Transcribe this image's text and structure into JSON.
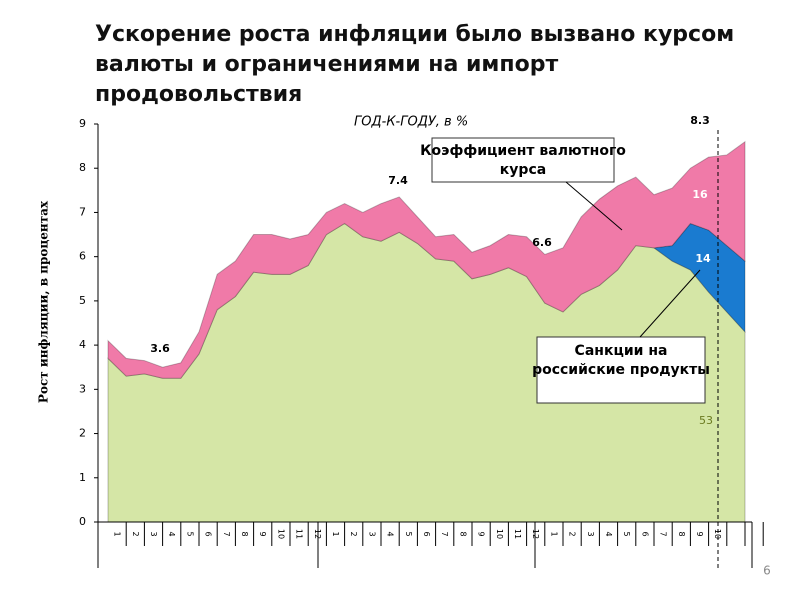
{
  "chart_data": {
    "type": "stacked_area",
    "title": "Ускорение роста инфляции было вызвано курсом валюты и ограничениями на импорт продовольствия",
    "subtitle": "ГОД-К-ГОДУ, в %",
    "y_label": "Рост инфляции, в процентах",
    "categories": [
      "1",
      "2",
      "3",
      "4",
      "5",
      "6",
      "7",
      "8",
      "9",
      "10",
      "11",
      "12",
      "1",
      "2",
      "3",
      "4",
      "5",
      "6",
      "7",
      "8",
      "9",
      "10",
      "11",
      "12",
      "1",
      "2",
      "3",
      "4",
      "5",
      "6",
      "7",
      "8",
      "9",
      "10",
      null,
      null
    ],
    "series": [
      {
        "color": "#d5e6a6",
        "values": [
          3.7,
          3.3,
          3.35,
          3.25,
          3.25,
          3.8,
          4.8,
          5.1,
          5.65,
          5.6,
          5.6,
          5.8,
          6.5,
          6.75,
          6.45,
          6.35,
          6.55,
          6.3,
          5.95,
          5.9,
          5.5,
          5.6,
          5.75,
          5.55,
          4.95,
          4.75,
          5.15,
          5.35,
          5.7,
          6.25,
          6.2,
          5.9,
          5.7,
          5.2,
          4.75,
          4.3
        ]
      },
      {
        "name": "Санкции на российские продукты",
        "color": "#1a7bd0",
        "values": [
          null,
          null,
          null,
          null,
          null,
          null,
          null,
          null,
          null,
          null,
          null,
          null,
          null,
          null,
          null,
          null,
          null,
          null,
          null,
          null,
          null,
          null,
          null,
          null,
          null,
          null,
          null,
          null,
          null,
          null,
          0,
          0.35,
          1.05,
          1.4,
          1.5,
          1.6
        ]
      },
      {
        "name": "Коэффициент валютного курса",
        "color": "#f07aa8",
        "values": [
          0.4,
          0.4,
          0.3,
          0.25,
          0.35,
          0.5,
          0.8,
          0.8,
          0.85,
          0.9,
          0.8,
          0.7,
          0.5,
          0.45,
          0.55,
          0.85,
          0.8,
          0.6,
          0.5,
          0.6,
          0.6,
          0.65,
          0.75,
          0.9,
          1.1,
          1.45,
          1.75,
          1.95,
          1.9,
          1.55,
          1.2,
          1.3,
          1.25,
          1.65,
          2.05,
          2.7
        ]
      }
    ],
    "annotations": [
      "3.6",
      "7.4",
      "6.6",
      "8.3",
      "16",
      "14",
      "53"
    ],
    "ylim": [
      0,
      9
    ],
    "yticks": [
      0,
      1,
      2,
      3,
      4,
      5,
      6,
      7,
      8,
      9
    ],
    "page_number": "6"
  }
}
